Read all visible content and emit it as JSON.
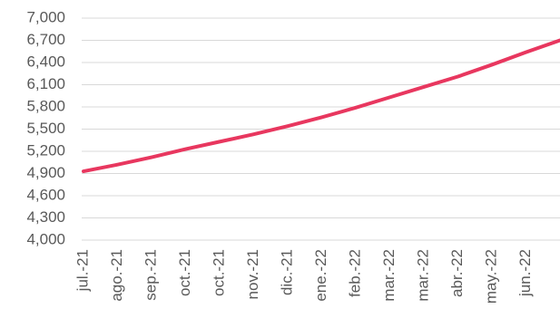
{
  "chart_data": {
    "type": "line",
    "categories": [
      "jul.-21",
      "ago.-21",
      "sep.-21",
      "oct.-21",
      "oct.-21",
      "nov.-21",
      "dic.-21",
      "ene.-22",
      "feb.-22",
      "mar.-22",
      "mar.-22",
      "abr.-22",
      "may.-22",
      "jun.-22",
      null
    ],
    "values": [
      4930,
      5020,
      5120,
      5230,
      5330,
      5430,
      5540,
      5660,
      5790,
      5930,
      6070,
      6210,
      6370,
      6540,
      6700
    ],
    "color": "#e8375f",
    "ylim": [
      4000,
      7000
    ],
    "yticks": [
      {
        "value": 4000,
        "label": "4,000"
      },
      {
        "value": 4300,
        "label": "4,300"
      },
      {
        "value": 4600,
        "label": "4,600"
      },
      {
        "value": 4900,
        "label": "4,900"
      },
      {
        "value": 5200,
        "label": "5,200"
      },
      {
        "value": 5500,
        "label": "5,500"
      },
      {
        "value": 5800,
        "label": "5,800"
      },
      {
        "value": 6100,
        "label": "6,100"
      },
      {
        "value": 6400,
        "label": "6,400"
      },
      {
        "value": 6700,
        "label": "6,700"
      },
      {
        "value": 7000,
        "label": "7,000"
      }
    ],
    "grid": true
  }
}
